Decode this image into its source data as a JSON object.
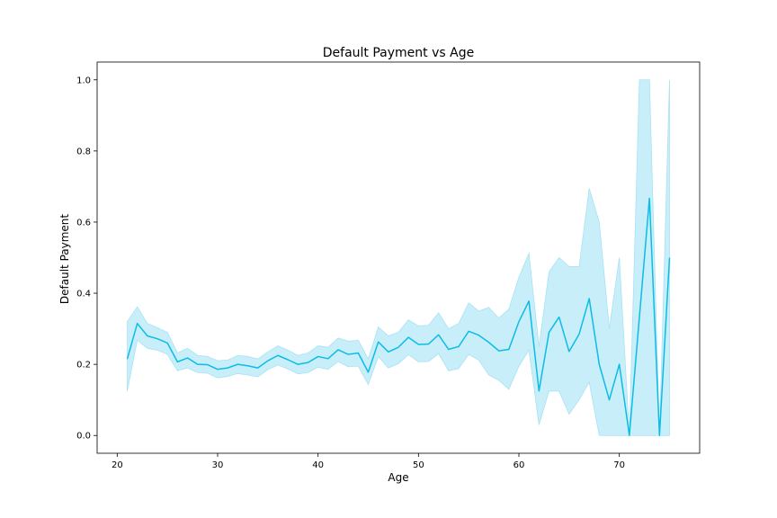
{
  "chart_data": {
    "type": "line",
    "title": "Default Payment vs Age",
    "xlabel": "Age",
    "ylabel": "Default Payment",
    "xlim": [
      18,
      78
    ],
    "ylim": [
      -0.05,
      1.05
    ],
    "xticks": [
      20,
      30,
      40,
      50,
      60,
      70
    ],
    "yticks": [
      0.0,
      0.2,
      0.4,
      0.6,
      0.8,
      1.0
    ],
    "ytick_labels": [
      "0.0",
      "0.2",
      "0.4",
      "0.6",
      "0.8",
      "1.0"
    ],
    "grid": false,
    "line_color": "#0bbde6",
    "band_color": "#c8eefa",
    "band_edge_color": "#a8e2f4",
    "x": [
      21,
      22,
      23,
      24,
      25,
      26,
      27,
      28,
      29,
      30,
      31,
      32,
      33,
      34,
      35,
      36,
      37,
      38,
      39,
      40,
      41,
      42,
      43,
      44,
      45,
      46,
      47,
      48,
      49,
      50,
      51,
      52,
      53,
      54,
      55,
      56,
      57,
      58,
      59,
      60,
      61,
      62,
      63,
      64,
      65,
      66,
      67,
      68,
      69,
      70,
      71,
      72,
      73,
      74,
      75
    ],
    "y": [
      0.215,
      0.315,
      0.28,
      0.272,
      0.26,
      0.207,
      0.218,
      0.2,
      0.199,
      0.186,
      0.19,
      0.2,
      0.196,
      0.19,
      0.21,
      0.225,
      0.213,
      0.2,
      0.205,
      0.222,
      0.216,
      0.241,
      0.228,
      0.232,
      0.178,
      0.263,
      0.235,
      0.248,
      0.276,
      0.256,
      0.257,
      0.283,
      0.242,
      0.25,
      0.293,
      0.282,
      0.262,
      0.238,
      0.242,
      0.32,
      0.378,
      0.125,
      0.29,
      0.333,
      0.236,
      0.285,
      0.385,
      0.2,
      0.1,
      0.2,
      0.0,
      0.333,
      0.667,
      0.0,
      0.5
    ],
    "lower": [
      0.125,
      0.268,
      0.245,
      0.24,
      0.228,
      0.182,
      0.19,
      0.177,
      0.175,
      0.162,
      0.166,
      0.174,
      0.17,
      0.165,
      0.185,
      0.198,
      0.187,
      0.173,
      0.177,
      0.192,
      0.186,
      0.208,
      0.193,
      0.195,
      0.143,
      0.222,
      0.19,
      0.202,
      0.227,
      0.207,
      0.208,
      0.23,
      0.182,
      0.188,
      0.228,
      0.212,
      0.17,
      0.155,
      0.13,
      0.195,
      0.24,
      0.03,
      0.125,
      0.125,
      0.06,
      0.1,
      0.15,
      0.0,
      0.0,
      0.0,
      0.0,
      0.0,
      0.0,
      0.0,
      0.0
    ],
    "upper": [
      0.32,
      0.362,
      0.315,
      0.303,
      0.29,
      0.232,
      0.245,
      0.225,
      0.222,
      0.21,
      0.212,
      0.225,
      0.222,
      0.215,
      0.235,
      0.252,
      0.24,
      0.225,
      0.232,
      0.252,
      0.248,
      0.274,
      0.265,
      0.268,
      0.215,
      0.305,
      0.28,
      0.29,
      0.325,
      0.308,
      0.31,
      0.345,
      0.3,
      0.315,
      0.373,
      0.35,
      0.36,
      0.33,
      0.355,
      0.445,
      0.512,
      0.25,
      0.46,
      0.5,
      0.475,
      0.475,
      0.695,
      0.6,
      0.3,
      0.5,
      0.0,
      1.0,
      1.0,
      0.0,
      1.0
    ]
  }
}
